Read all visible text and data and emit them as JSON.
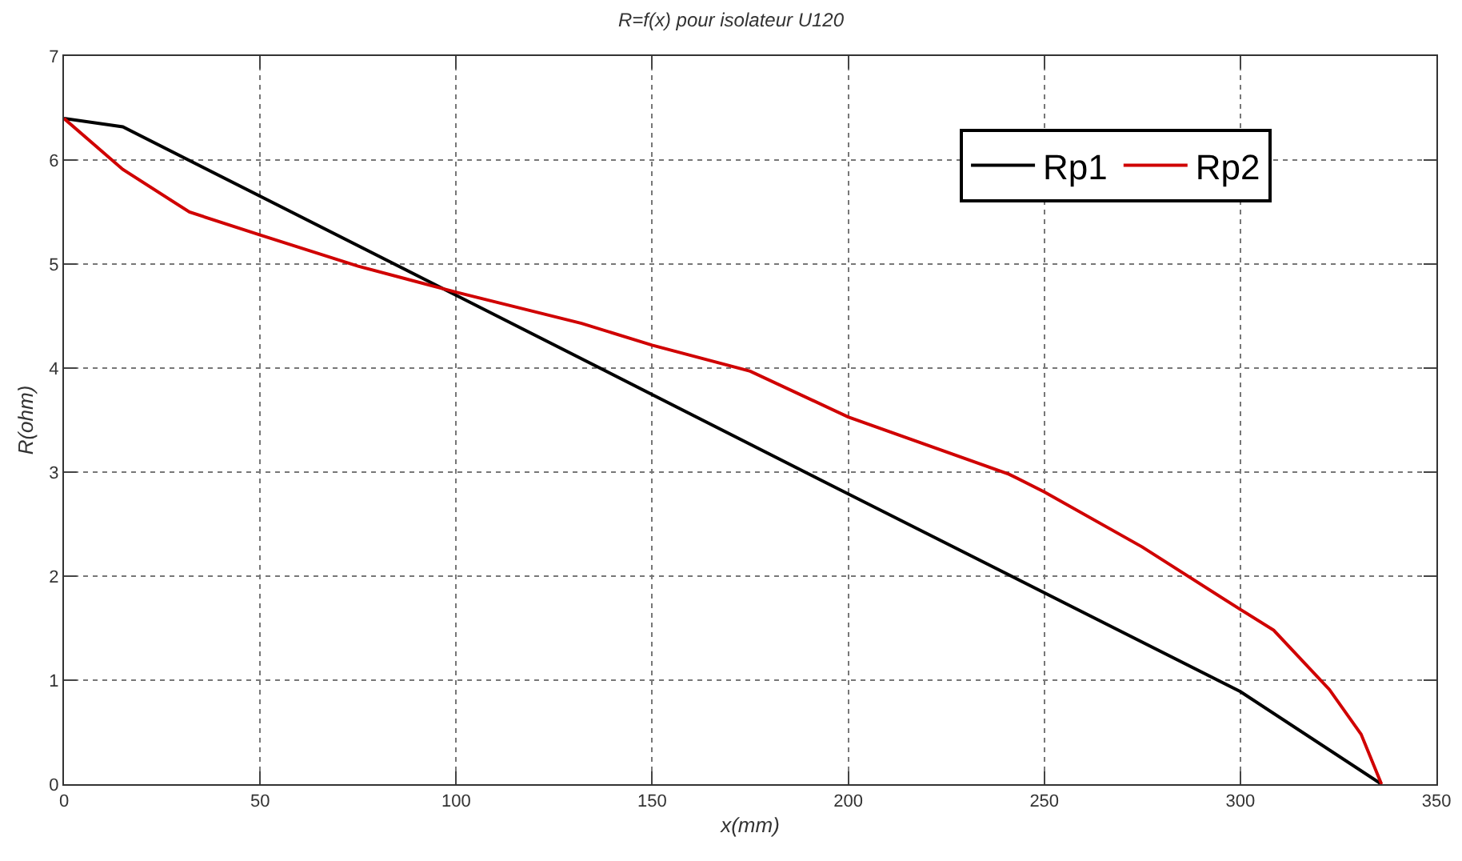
{
  "chart_data": {
    "type": "line",
    "title": "R=f(x) pour isolateur U120",
    "xlabel": "x(mm)",
    "ylabel": "R(ohm)",
    "xlim": [
      0,
      350
    ],
    "xticks": [
      0,
      50,
      100,
      150,
      200,
      250,
      300,
      350
    ],
    "ylim": [
      0,
      7
    ],
    "yticks": [
      0,
      1,
      2,
      3,
      4,
      5,
      6,
      7
    ],
    "grid": true,
    "legend": "top right",
    "line_style": "solid",
    "series": [
      {
        "name": "Rp1",
        "color": "#000000",
        "x": [
          0,
          15,
          100,
          200,
          300,
          336
        ],
        "values": [
          6.4,
          6.32,
          4.7,
          2.79,
          0.89,
          0
        ]
      },
      {
        "name": "Rp2",
        "color": "#d00000",
        "x": [
          0,
          15,
          32,
          50,
          75,
          100,
          132,
          150,
          175,
          200,
          241,
          250,
          275,
          300,
          308.5,
          322.7,
          330.8,
          336
        ],
        "values": [
          6.4,
          5.91,
          5.5,
          5.28,
          4.98,
          4.73,
          4.43,
          4.22,
          3.97,
          3.53,
          2.98,
          2.81,
          2.28,
          1.68,
          1.48,
          0.91,
          0.48,
          0
        ]
      }
    ]
  }
}
